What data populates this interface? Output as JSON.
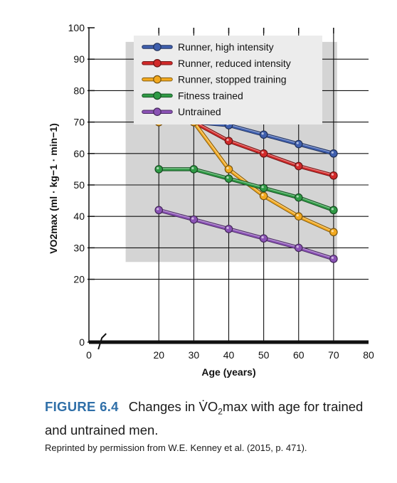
{
  "chart_data": {
    "type": "line",
    "xlabel": "Age (years)",
    "ylabel": "VO2max (ml · kg−1 · min−1)",
    "xlim": [
      0,
      80
    ],
    "ylim": [
      0,
      100
    ],
    "x_ticks": [
      0,
      20,
      30,
      40,
      50,
      60,
      70,
      80
    ],
    "y_ticks": [
      0,
      20,
      30,
      40,
      50,
      60,
      70,
      80,
      90,
      100
    ],
    "x_axis_break": true,
    "grid": true,
    "legend_position": "top-center",
    "series": [
      {
        "name": "Runner, high intensity",
        "color": "#3f5fae",
        "x": [
          20,
          30,
          40,
          50,
          60,
          70
        ],
        "y": [
          70,
          70,
          69,
          66,
          63,
          60
        ]
      },
      {
        "name": "Runner, reduced intensity",
        "color": "#d22a2a",
        "x": [
          20,
          30,
          40,
          50,
          60,
          70
        ],
        "y": [
          70,
          70,
          64,
          60,
          56,
          53
        ]
      },
      {
        "name": "Runner, stopped training",
        "color": "#f2a91f",
        "x": [
          20,
          30,
          40,
          50,
          60,
          70
        ],
        "y": [
          70,
          70,
          55,
          46.5,
          40,
          35
        ]
      },
      {
        "name": "Fitness trained",
        "color": "#2f9a45",
        "x": [
          20,
          30,
          40,
          50,
          60,
          70
        ],
        "y": [
          55,
          55,
          52,
          49,
          46,
          42
        ]
      },
      {
        "name": "Untrained",
        "color": "#8a52b5",
        "x": [
          20,
          30,
          40,
          50,
          60,
          70
        ],
        "y": [
          42,
          39,
          36,
          33,
          30,
          26.5
        ]
      }
    ]
  },
  "caption": {
    "figure_number": "FIGURE 6.4",
    "text_before": "Changes in V̇O",
    "subscript": "2",
    "text_after": "max with age for trained and untrained men."
  },
  "credit": "Reprinted by permission from W.E. Kenney et al. (2015, p. 471)."
}
